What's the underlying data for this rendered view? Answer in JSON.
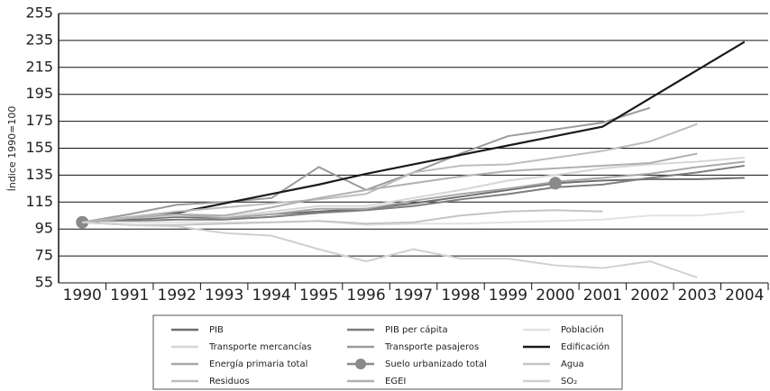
{
  "chart_data": {
    "type": "line",
    "y_label": "Índice 1990=100",
    "categories": [
      "1990",
      "1991",
      "1992",
      "1993",
      "1994",
      "1995",
      "1996",
      "1997",
      "1998",
      "1999",
      "2000",
      "2001",
      "2002",
      "2003",
      "2004"
    ],
    "ylim": [
      55,
      255
    ],
    "yticks": [
      55,
      75,
      95,
      115,
      135,
      155,
      175,
      195,
      215,
      235,
      255
    ],
    "grid": true,
    "series": [
      {
        "name": "PIB",
        "color": "#6e6e6e",
        "values": [
          100,
          102,
          104,
          103,
          106,
          108,
          110,
          114,
          119,
          124,
          129,
          131,
          132,
          132,
          133
        ]
      },
      {
        "name": "PIB per cápita",
        "color": "#7d7d7d",
        "values": [
          100,
          101,
          102,
          102,
          104,
          107,
          109,
          112,
          117,
          121,
          126,
          128,
          133,
          137,
          142
        ]
      },
      {
        "name": "Población",
        "color": "#e2e2e2",
        "values": [
          100,
          100,
          100,
          100,
          100,
          101,
          98,
          99,
          99,
          100,
          101,
          102,
          105,
          105,
          108
        ]
      },
      {
        "name": "Transporte mercancías",
        "color": "#d6d6d6",
        "values": [
          100,
          103,
          105,
          104,
          108,
          112,
          112,
          118,
          124,
          131,
          135,
          140,
          143,
          145,
          148
        ]
      },
      {
        "name": "Transporte pasajeros",
        "color": "#9a9a9a",
        "values": [
          100,
          106,
          113,
          115,
          118,
          141,
          124,
          137,
          151,
          164,
          169,
          174,
          185,
          null,
          null
        ]
      },
      {
        "name": "Edificación",
        "color": "#1a1a1a",
        "values": [
          100,
          103,
          107,
          114,
          121,
          128,
          136,
          143,
          150,
          157,
          164,
          171,
          192,
          213,
          234
        ]
      },
      {
        "name": "Energía primaria total",
        "color": "#a8a8a8",
        "values": [
          100,
          104,
          106,
          103,
          106,
          110,
          110,
          116,
          121,
          125,
          130,
          133,
          136,
          141,
          145
        ]
      },
      {
        "name": "Suelo urbanizado total",
        "color": "#8a8a8a",
        "marker": true,
        "values": [
          100,
          null,
          null,
          null,
          null,
          null,
          null,
          null,
          null,
          null,
          129,
          null,
          null,
          null,
          null
        ]
      },
      {
        "name": "Agua",
        "color": "#c4c4c4",
        "values": [
          100,
          98,
          98,
          99,
          100,
          101,
          99,
          100,
          105,
          108,
          109,
          108,
          null,
          null,
          null
        ]
      },
      {
        "name": "Residuos",
        "color": "#bdbdbd",
        "values": [
          100,
          104,
          108,
          111,
          114,
          117,
          121,
          137,
          142,
          143,
          148,
          153,
          160,
          173,
          null
        ]
      },
      {
        "name": "EGEI",
        "color": "#b0b0b0",
        "values": [
          100,
          103,
          106,
          105,
          111,
          118,
          124,
          129,
          134,
          138,
          140,
          142,
          144,
          151,
          null
        ]
      },
      {
        "name": "SO₂",
        "color": "#d0d0d0",
        "values": [
          100,
          98,
          97,
          92,
          90,
          80,
          71,
          80,
          73,
          73,
          68,
          66,
          71,
          59,
          null
        ]
      }
    ]
  }
}
